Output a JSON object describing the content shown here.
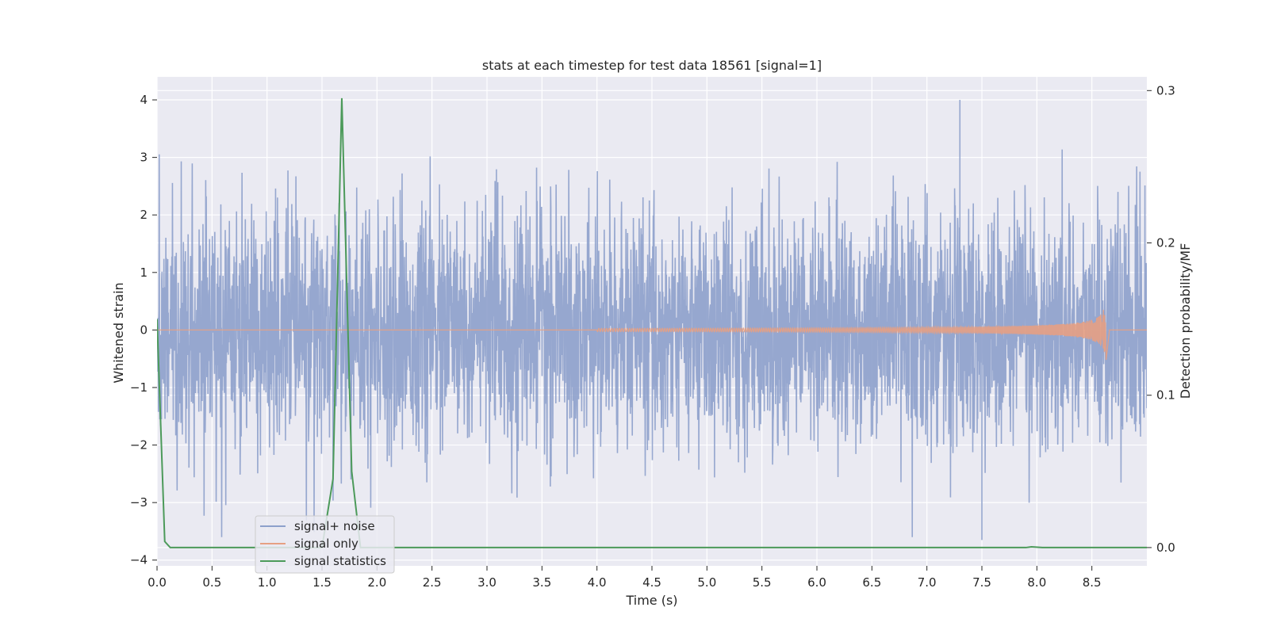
{
  "chart_data": {
    "type": "line",
    "title": "stats at each timestep for test data 18561 [signal=1]",
    "xlabel": "Time (s)",
    "ylabel": "Whitened strain",
    "y2label": "Detection probability/MF",
    "xlim": [
      0.0,
      9.0
    ],
    "ylim": [
      -4.1,
      4.4
    ],
    "y2lim": [
      -0.012,
      0.309
    ],
    "xticks": [
      "0.0",
      "0.5",
      "1.0",
      "1.5",
      "2.0",
      "2.5",
      "3.0",
      "3.5",
      "4.0",
      "4.5",
      "5.0",
      "5.5",
      "6.0",
      "6.5",
      "7.0",
      "7.5",
      "8.0",
      "8.5"
    ],
    "yticks": [
      "4",
      "3",
      "2",
      "1",
      "0",
      "−1",
      "−2",
      "−3",
      "−4"
    ],
    "y2ticks": [
      "0.3",
      "0.2",
      "0.1",
      "0.0"
    ],
    "grid": true,
    "legend_position": "lower-left",
    "series": [
      {
        "name": "signal+ noise",
        "axis": "left",
        "color": "#8da0cb",
        "description_values": "whitened strain with noise, roughly symmetric about 0 with peaks near ±4",
        "peaks": {
          "max": 4.0,
          "max_at": 7.3,
          "min": -3.65,
          "min_at": 7.5
        }
      },
      {
        "name": "signal only",
        "axis": "left",
        "color": "#e6a083",
        "chirp": {
          "start": 4.0,
          "merger": 8.63,
          "peak_amplitude": 0.55
        }
      },
      {
        "name": "signal statistics",
        "axis": "right",
        "color": "#4c9a5a",
        "x": [
          0.0,
          0.07,
          0.12,
          0.2,
          1.5,
          1.6,
          1.68,
          1.77,
          1.85,
          2.0,
          7.9,
          7.95,
          8.05,
          8.5,
          9.0
        ],
        "y": [
          0.15,
          0.004,
          0.0,
          0.0,
          0.0,
          0.045,
          0.295,
          0.05,
          0.0,
          0.0,
          0.0,
          0.0005,
          0.0,
          0.0,
          0.0
        ]
      }
    ]
  }
}
